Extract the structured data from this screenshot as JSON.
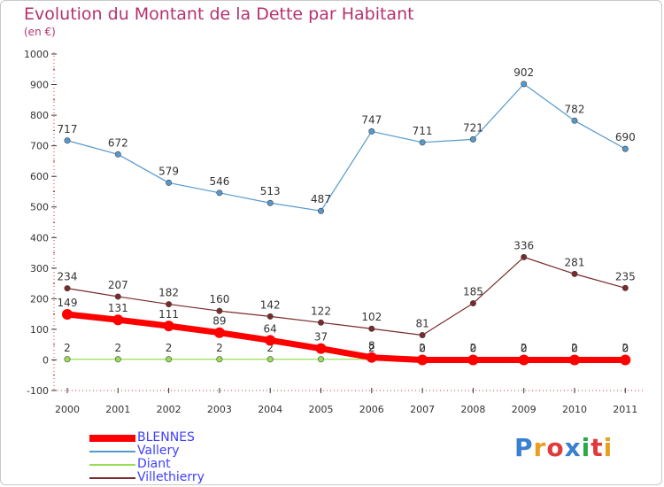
{
  "chart_data": {
    "type": "line",
    "title": "Evolution du Montant de la Dette par Habitant",
    "subtitle": "(en €)",
    "categories": [
      "2000",
      "2001",
      "2002",
      "2003",
      "2004",
      "2005",
      "2006",
      "2007",
      "2008",
      "2009",
      "2010",
      "2011"
    ],
    "ylim": [
      -100,
      1000
    ],
    "yticks": [
      -100,
      0,
      100,
      200,
      300,
      400,
      500,
      600,
      700,
      800,
      900,
      1000
    ],
    "grid": false,
    "legend_position": "bottom-left",
    "series": [
      {
        "name": "BLENNES",
        "color": "#ff0000",
        "values": [
          149,
          131,
          111,
          89,
          64,
          37,
          8,
          0,
          0,
          0,
          0,
          0
        ]
      },
      {
        "name": "Vallery",
        "color": "#5599cc",
        "values": [
          717,
          672,
          579,
          546,
          513,
          487,
          747,
          711,
          721,
          902,
          782,
          690
        ]
      },
      {
        "name": "Diant",
        "color": "#99dd55",
        "values": [
          2,
          2,
          2,
          2,
          2,
          2,
          2,
          2,
          2,
          2,
          2,
          2
        ]
      },
      {
        "name": "Villethierry",
        "color": "#7a2a2a",
        "values": [
          234,
          207,
          182,
          160,
          142,
          122,
          102,
          81,
          185,
          336,
          281,
          235
        ]
      }
    ]
  },
  "logo": {
    "text": "Proxiti"
  }
}
